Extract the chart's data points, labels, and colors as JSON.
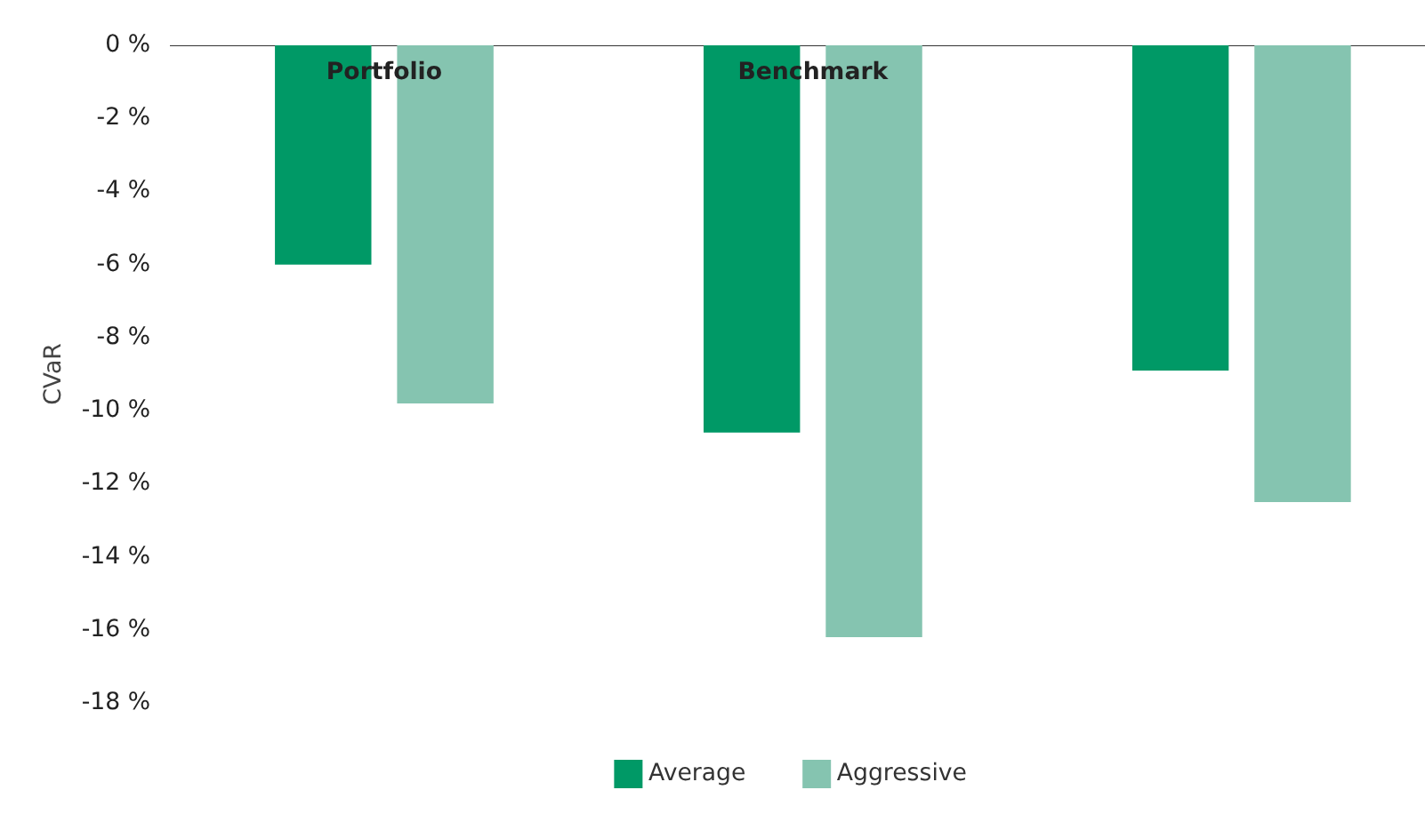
{
  "chart_data": {
    "type": "bar",
    "ylabel": "CVaR",
    "categories": [
      "Portfolio",
      "Benchmark",
      null
    ],
    "series": [
      {
        "name": "Average",
        "color": "#009966",
        "values": [
          -6.0,
          -10.6,
          -8.9
        ]
      },
      {
        "name": "Aggressive",
        "color": "#85c4b0",
        "values": [
          -9.8,
          -16.2,
          -12.5
        ]
      }
    ],
    "ylim": [
      -18,
      0
    ],
    "yticks": [
      {
        "value": 0,
        "label": "0 %"
      },
      {
        "value": -2,
        "label": "-2 %"
      },
      {
        "value": -4,
        "label": "-4 %"
      },
      {
        "value": -6,
        "label": "-6 %"
      },
      {
        "value": -8,
        "label": "-8 %"
      },
      {
        "value": -10,
        "label": "-10 %"
      },
      {
        "value": -12,
        "label": "-12 %"
      },
      {
        "value": -14,
        "label": "-14 %"
      },
      {
        "value": -16,
        "label": "-16 %"
      },
      {
        "value": -18,
        "label": "-18 %"
      }
    ],
    "grid": false,
    "legend": "bottom"
  }
}
